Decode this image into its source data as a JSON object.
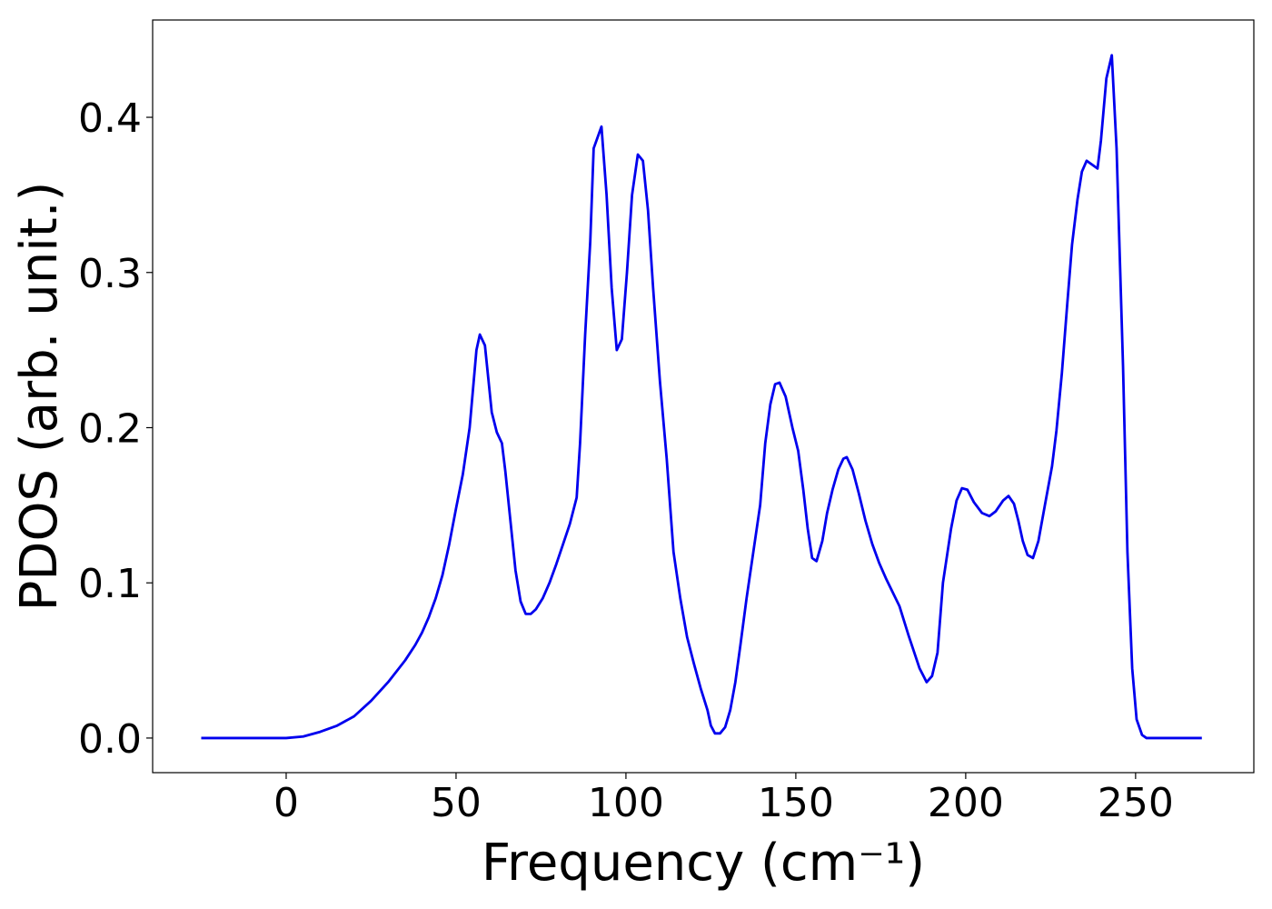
{
  "chart_data": {
    "type": "line",
    "xlabel": "Frequency (cm⁻¹)",
    "ylabel": "PDOS (arb. unit.)",
    "xlim": [
      -39.3,
      284.8
    ],
    "ylim": [
      -0.0223,
      0.4627
    ],
    "xticks": [
      0,
      50,
      100,
      150,
      200,
      250
    ],
    "yticks": [
      {
        "value": 0,
        "label": "0.0"
      },
      0.1,
      0.2,
      0.3,
      0.4
    ],
    "x": [
      -25,
      -20,
      -10,
      0,
      5,
      10,
      15,
      20,
      25,
      30,
      35,
      38,
      40,
      42,
      44,
      46,
      48,
      50,
      52,
      54,
      55,
      56,
      57,
      58.5,
      60.5,
      62,
      63.5,
      64.5,
      66,
      67.5,
      69,
      70.5,
      72,
      73.5,
      75.5,
      77.5,
      79.5,
      81.5,
      83.5,
      85.5,
      86.5,
      88,
      89.5,
      90.5,
      92.8,
      94.3,
      95.8,
      97.3,
      98.8,
      100.3,
      101.8,
      103.5,
      105,
      106.5,
      108,
      110,
      112,
      114,
      116,
      118,
      120,
      122,
      124,
      125,
      126.2,
      127.7,
      129.2,
      130.7,
      132.2,
      133.7,
      135.5,
      137.5,
      139.5,
      141,
      142.5,
      143.9,
      145.2,
      147,
      149,
      150.7,
      152.2,
      153.5,
      154.8,
      156.1,
      157.8,
      159.2,
      160.8,
      162.5,
      164,
      165,
      166.7,
      168.5,
      170.5,
      172.5,
      174.5,
      176.5,
      178.5,
      180.5,
      183.2,
      186.4,
      188.5,
      190.1,
      191.7,
      193.3,
      195.7,
      197.3,
      198.9,
      200.5,
      202.4,
      204.8,
      207,
      208.8,
      211,
      212.6,
      214.2,
      215.5,
      216.8,
      218.2,
      219.8,
      221.4,
      223.3,
      225.4,
      226.7,
      228.3,
      229.9,
      231.3,
      232.9,
      234.2,
      235.6,
      238.8,
      239.8,
      241.4,
      243,
      244.4,
      246.3,
      247.6,
      249,
      250.3,
      251.9,
      253.2,
      269.5
    ],
    "series": [
      {
        "color": "#0000ee",
        "values": [
          0,
          0,
          0,
          0,
          0.001,
          0.004,
          0.008,
          0.014,
          0.024,
          0.036,
          0.05,
          0.06,
          0.068,
          0.078,
          0.09,
          0.105,
          0.125,
          0.148,
          0.17,
          0.2,
          0.225,
          0.25,
          0.26,
          0.253,
          0.21,
          0.197,
          0.19,
          0.172,
          0.14,
          0.108,
          0.088,
          0.08,
          0.08,
          0.083,
          0.09,
          0.1,
          0.112,
          0.125,
          0.138,
          0.155,
          0.19,
          0.26,
          0.32,
          0.38,
          0.394,
          0.35,
          0.29,
          0.25,
          0.257,
          0.3,
          0.35,
          0.376,
          0.372,
          0.34,
          0.29,
          0.23,
          0.18,
          0.12,
          0.09,
          0.065,
          0.048,
          0.032,
          0.018,
          0.008,
          0.003,
          0.003,
          0.007,
          0.018,
          0.036,
          0.06,
          0.09,
          0.12,
          0.15,
          0.19,
          0.215,
          0.228,
          0.229,
          0.22,
          0.2,
          0.185,
          0.16,
          0.135,
          0.116,
          0.114,
          0.127,
          0.145,
          0.16,
          0.173,
          0.18,
          0.181,
          0.173,
          0.158,
          0.14,
          0.125,
          0.113,
          0.103,
          0.094,
          0.085,
          0.066,
          0.045,
          0.036,
          0.04,
          0.055,
          0.1,
          0.135,
          0.153,
          0.161,
          0.16,
          0.152,
          0.145,
          0.143,
          0.146,
          0.153,
          0.156,
          0.151,
          0.14,
          0.127,
          0.118,
          0.116,
          0.127,
          0.15,
          0.175,
          0.198,
          0.235,
          0.28,
          0.318,
          0.347,
          0.365,
          0.372,
          0.367,
          0.385,
          0.425,
          0.44,
          0.38,
          0.24,
          0.12,
          0.045,
          0.012,
          0.002,
          0,
          0
        ]
      }
    ]
  }
}
